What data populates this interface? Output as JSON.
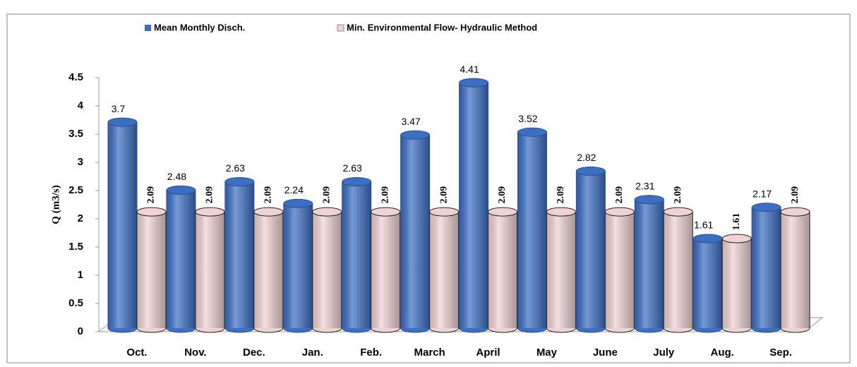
{
  "chart_data": {
    "type": "bar3d",
    "y_label": "Q (m3/s)",
    "categories": [
      "Oct.",
      "Nov.",
      "Dec.",
      "Jan.",
      "Feb.",
      "March",
      "April",
      "May",
      "June",
      "July",
      "Aug.",
      "Sep."
    ],
    "series": [
      {
        "name": "Mean Monthly Disch.",
        "color": "#3b6fc4",
        "values": [
          3.7,
          2.48,
          2.63,
          2.24,
          2.63,
          3.47,
          4.41,
          3.52,
          2.82,
          2.31,
          1.61,
          2.17
        ]
      },
      {
        "name": "Min. Environmental Flow- Hydraulic Method",
        "color": "#efd3d3",
        "values": [
          2.09,
          2.09,
          2.09,
          2.09,
          2.09,
          2.09,
          2.09,
          2.09,
          2.09,
          2.09,
          1.61,
          2.09
        ]
      }
    ],
    "ylim": [
      0,
      4.5
    ],
    "yticks": [
      0,
      0.5,
      1,
      1.5,
      2,
      2.5,
      3,
      3.5,
      4,
      4.5
    ]
  }
}
